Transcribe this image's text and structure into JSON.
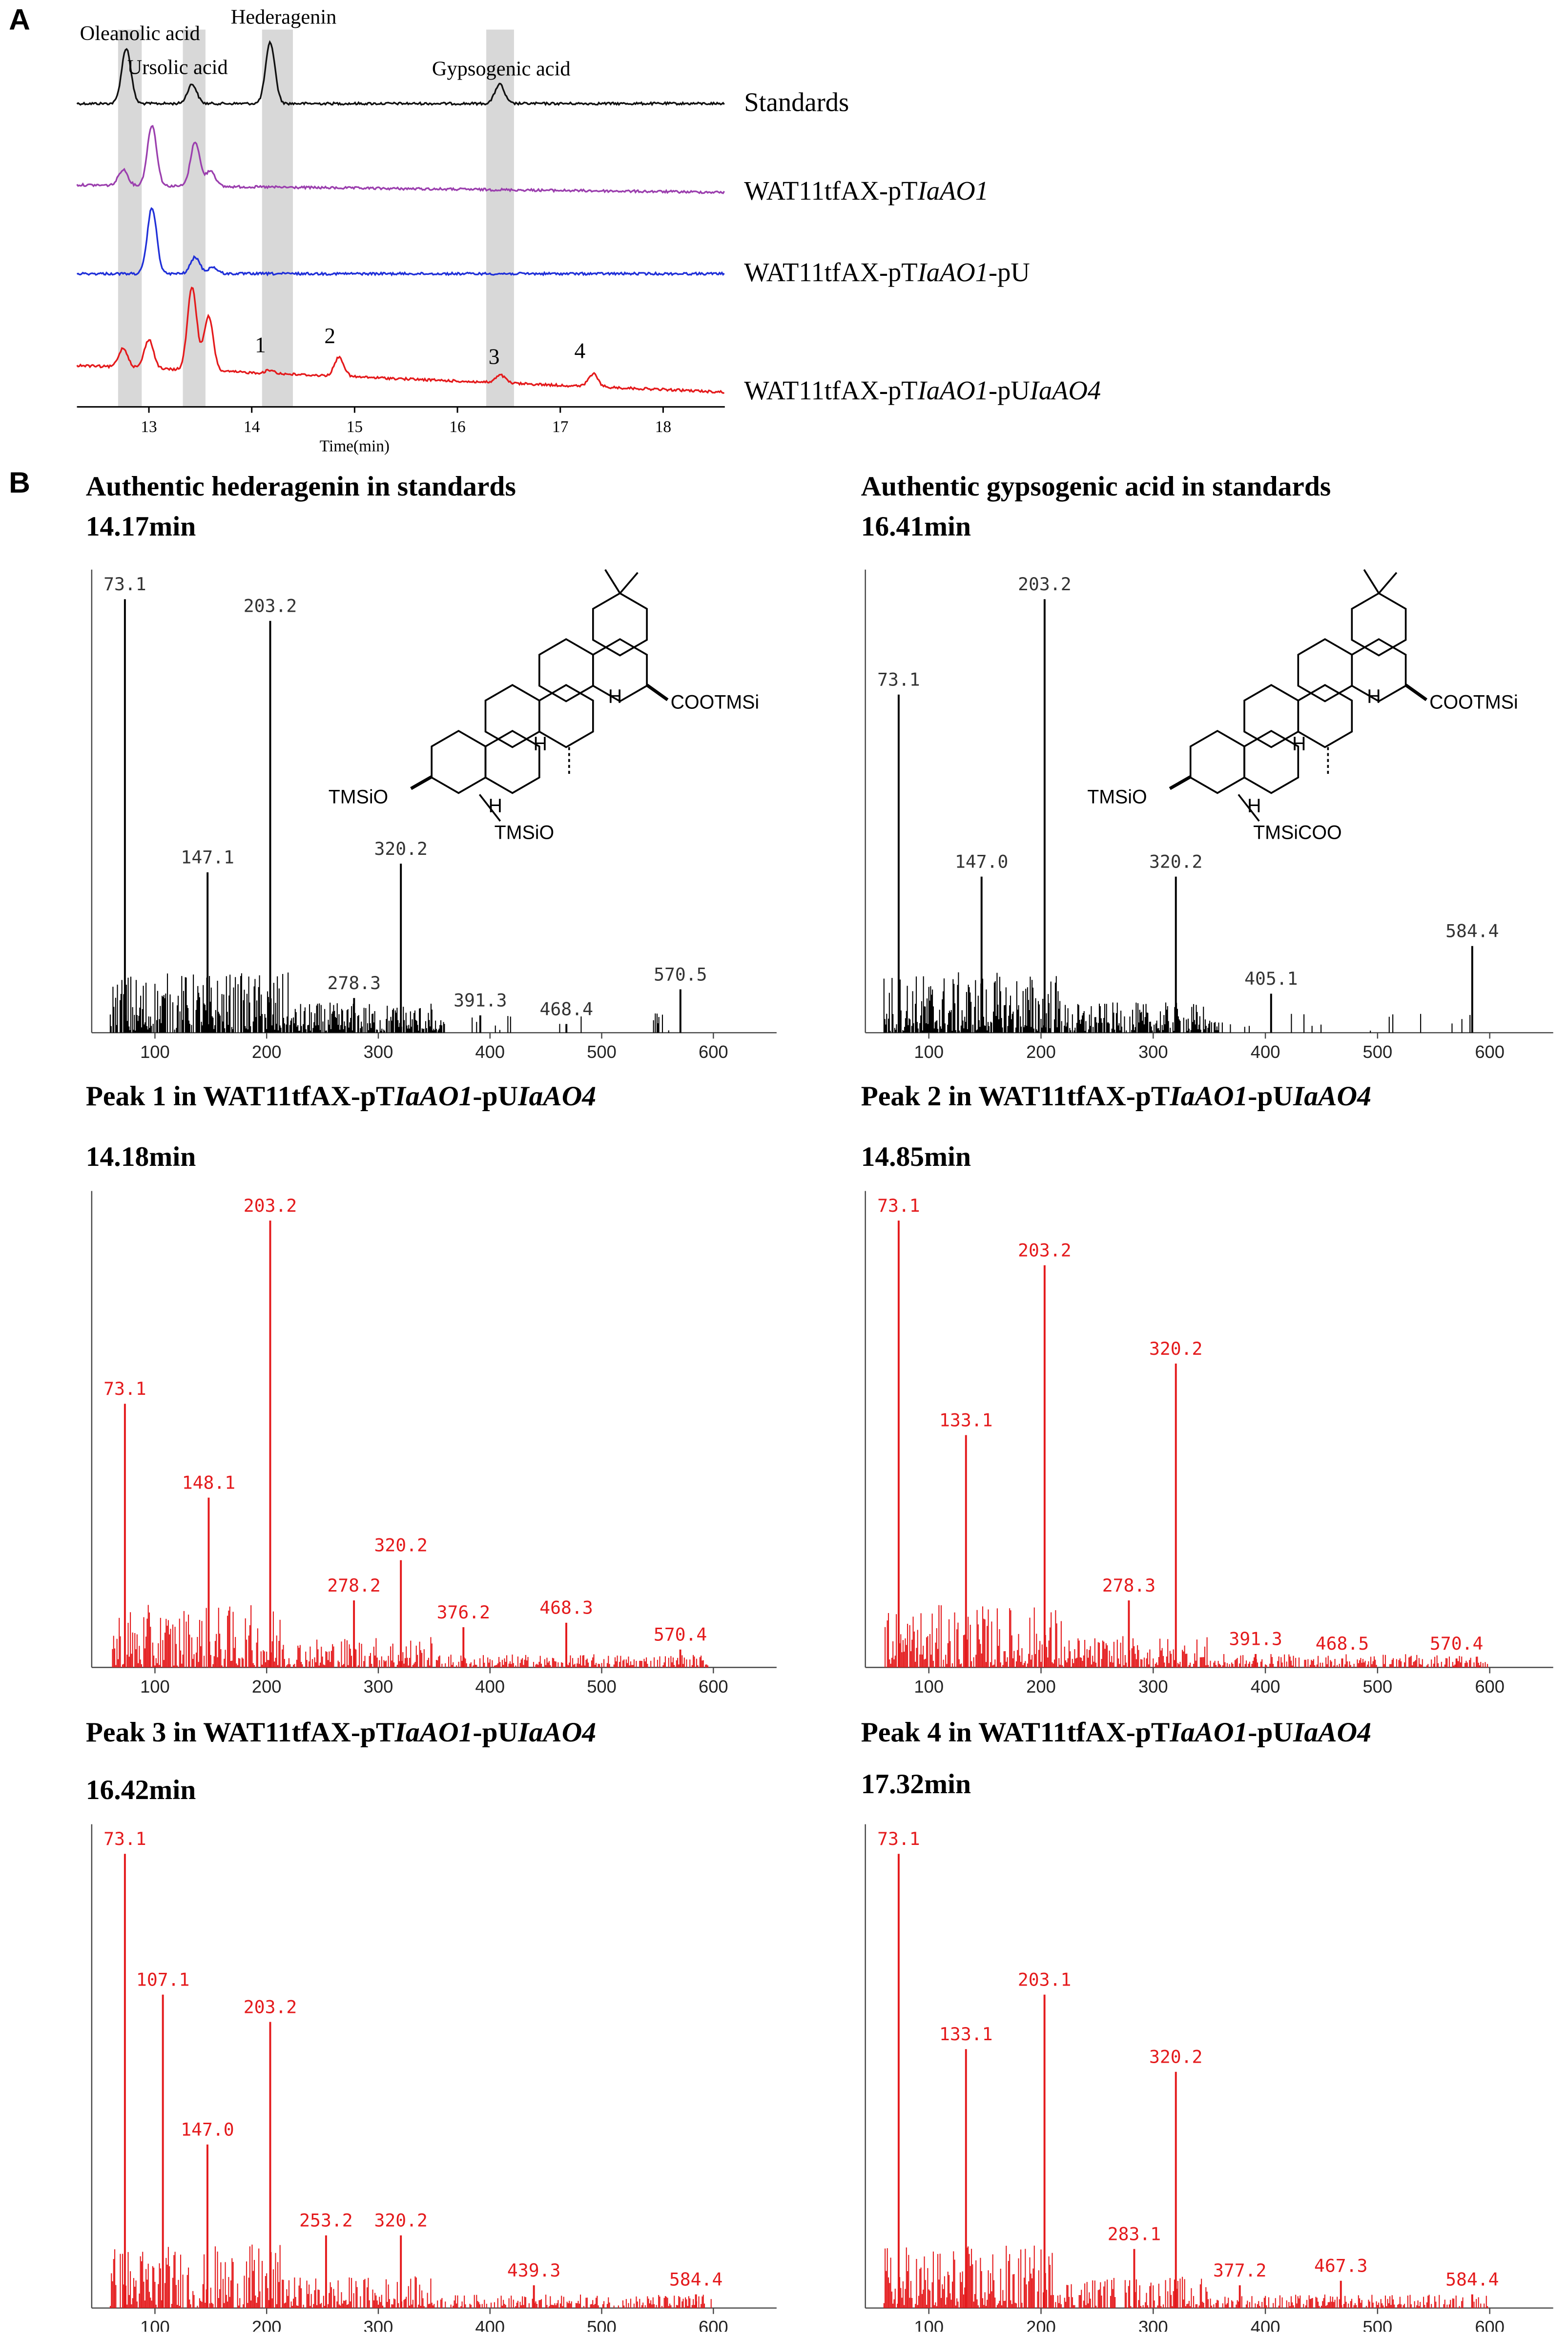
{
  "panel_labels": {
    "a": "A",
    "b": "B"
  },
  "colors": {
    "standards": "#111111",
    "io1": "#9b3fae",
    "io1_pu": "#2030d8",
    "io1_pu_ao4": "#e41a1c",
    "highlight": "#d8d8d8",
    "spectrum_black": "#000000",
    "spectrum_red": "#e41a1c"
  },
  "chromatogram": {
    "xlabel": "Time(min)",
    "xticks": [
      13,
      14,
      15,
      16,
      17,
      18
    ],
    "xlim": [
      12.3,
      18.6
    ],
    "highlight_bands": [
      [
        12.7,
        12.93
      ],
      [
        13.33,
        13.55
      ],
      [
        14.1,
        14.4
      ],
      [
        16.28,
        16.55
      ]
    ],
    "compounds": [
      {
        "label": "Oleanolic acid"
      },
      {
        "label": "Ursolic acid"
      },
      {
        "label": "Hederagenin"
      },
      {
        "label": "Gypsogenic acid"
      }
    ],
    "peak_numbers": [
      "1",
      "2",
      "3",
      "4"
    ],
    "traces": [
      {
        "label": "Standards",
        "label_parts": [
          {
            "t": "Standards",
            "i": false
          }
        ],
        "color": "#111111"
      },
      {
        "label": "WAT11tfAX-pTIaAO1",
        "label_parts": [
          {
            "t": "WAT11tfAX-pT",
            "i": false
          },
          {
            "t": "IaAO1",
            "i": true
          }
        ],
        "color": "#9b3fae"
      },
      {
        "label": "WAT11tfAX-pTIaAO1-pU",
        "label_parts": [
          {
            "t": "WAT11tfAX-pT",
            "i": false
          },
          {
            "t": "IaAO1",
            "i": true
          },
          {
            "t": "-pU",
            "i": false
          }
        ],
        "color": "#2030d8"
      },
      {
        "label": "WAT11tfAX-pTIaAO1-pUIaAO4",
        "label_parts": [
          {
            "t": "WAT11tfAX-pT",
            "i": false
          },
          {
            "t": "IaAO1",
            "i": true
          },
          {
            "t": "-pU",
            "i": false
          },
          {
            "t": "IaAO4",
            "i": true
          }
        ],
        "color": "#e41a1c"
      }
    ]
  },
  "spectra": [
    {
      "title_parts": [
        {
          "t": "Authentic hederagenin in standards",
          "i": false
        }
      ],
      "time": "14.17min",
      "color": "black",
      "structure": "hederagenin",
      "labels": [
        {
          "mz": 73.1,
          "text": "73.1"
        },
        {
          "mz": 203.2,
          "text": "203.2"
        },
        {
          "mz": 147.1,
          "text": "147.1"
        },
        {
          "mz": 320.2,
          "text": "320.2"
        },
        {
          "mz": 278.3,
          "text": "278.3"
        },
        {
          "mz": 391.3,
          "text": "391.3"
        },
        {
          "mz": 468.4,
          "text": "468.4"
        },
        {
          "mz": 570.5,
          "text": "570.5"
        }
      ]
    },
    {
      "title_parts": [
        {
          "t": "Authentic gypsogenic acid in standards",
          "i": false
        }
      ],
      "time": "16.41min",
      "color": "black",
      "structure": "gypsogenic",
      "labels": [
        {
          "mz": 73.1,
          "text": "73.1"
        },
        {
          "mz": 203.2,
          "text": "203.2"
        },
        {
          "mz": 147.0,
          "text": "147.0"
        },
        {
          "mz": 320.2,
          "text": "320.2"
        },
        {
          "mz": 405.1,
          "text": "405.1"
        },
        {
          "mz": 584.4,
          "text": "584.4"
        }
      ]
    },
    {
      "title_parts": [
        {
          "t": "Peak 1 in WAT11tfAX-pT",
          "i": false
        },
        {
          "t": "IaAO1",
          "i": true
        },
        {
          "t": "-pU",
          "i": false
        },
        {
          "t": "IaAO4",
          "i": true
        }
      ],
      "time": "14.18min",
      "color": "red",
      "labels": [
        {
          "mz": 203.2,
          "text": "203.2"
        },
        {
          "mz": 73.1,
          "text": "73.1"
        },
        {
          "mz": 148.1,
          "text": "148.1"
        },
        {
          "mz": 320.2,
          "text": "320.2"
        },
        {
          "mz": 278.2,
          "text": "278.2"
        },
        {
          "mz": 376.2,
          "text": "376.2"
        },
        {
          "mz": 468.3,
          "text": "468.3"
        },
        {
          "mz": 570.4,
          "text": "570.4"
        }
      ]
    },
    {
      "title_parts": [
        {
          "t": "Peak 2 in WAT11tfAX-pT",
          "i": false
        },
        {
          "t": "IaAO1",
          "i": true
        },
        {
          "t": "-pU",
          "i": false
        },
        {
          "t": "IaAO4",
          "i": true
        }
      ],
      "time": "14.85min",
      "color": "red",
      "labels": [
        {
          "mz": 73.1,
          "text": "73.1"
        },
        {
          "mz": 203.2,
          "text": "203.2"
        },
        {
          "mz": 320.2,
          "text": "320.2"
        },
        {
          "mz": 133.1,
          "text": "133.1"
        },
        {
          "mz": 278.3,
          "text": "278.3"
        },
        {
          "mz": 391.3,
          "text": "391.3"
        },
        {
          "mz": 468.5,
          "text": "468.5"
        },
        {
          "mz": 570.4,
          "text": "570.4"
        }
      ]
    },
    {
      "title_parts": [
        {
          "t": "Peak 3 in WAT11tfAX-pT",
          "i": false
        },
        {
          "t": "IaAO1",
          "i": true
        },
        {
          "t": "-pU",
          "i": false
        },
        {
          "t": "IaAO4",
          "i": true
        }
      ],
      "time": "16.42min",
      "color": "red",
      "labels": [
        {
          "mz": 73.1,
          "text": "73.1"
        },
        {
          "mz": 107.1,
          "text": "107.1"
        },
        {
          "mz": 203.2,
          "text": "203.2"
        },
        {
          "mz": 147.0,
          "text": "147.0"
        },
        {
          "mz": 253.2,
          "text": "253.2"
        },
        {
          "mz": 320.2,
          "text": "320.2"
        },
        {
          "mz": 439.3,
          "text": "439.3"
        },
        {
          "mz": 584.4,
          "text": "584.4"
        }
      ]
    },
    {
      "title_parts": [
        {
          "t": "Peak 4 in WAT11tfAX-pT",
          "i": false
        },
        {
          "t": "IaAO1",
          "i": true
        },
        {
          "t": "-pU",
          "i": false
        },
        {
          "t": "IaAO4",
          "i": true
        }
      ],
      "time": "17.32min",
      "color": "red",
      "labels": [
        {
          "mz": 73.1,
          "text": "73.1"
        },
        {
          "mz": 203.1,
          "text": "203.1"
        },
        {
          "mz": 133.1,
          "text": "133.1"
        },
        {
          "mz": 320.2,
          "text": "320.2"
        },
        {
          "mz": 283.1,
          "text": "283.1"
        },
        {
          "mz": 377.2,
          "text": "377.2"
        },
        {
          "mz": 467.3,
          "text": "467.3"
        },
        {
          "mz": 584.4,
          "text": "584.4"
        }
      ]
    }
  ],
  "spectrum_axis": {
    "ticks": [
      100,
      200,
      300,
      400,
      500,
      600
    ]
  },
  "structures": {
    "hederagenin": {
      "r1": "COOTMSi",
      "r2": "TMSiO",
      "r3": "TMSiO",
      "h1": "H",
      "h2": "H",
      "h3": "H"
    },
    "gypsogenic": {
      "r1": "COOTMSi",
      "r2": "TMSiO",
      "r3": "TMSiCOO",
      "h1": "H",
      "h2": "H",
      "h3": "H"
    }
  },
  "chart_data": [
    {
      "type": "line",
      "title": "",
      "xlabel": "Time(min)",
      "ylabel": "",
      "xlim": [
        12.3,
        18.6
      ],
      "series": [
        {
          "name": "Standards",
          "peaks": [
            {
              "x": 12.78,
              "y": 1.0
            },
            {
              "x": 13.42,
              "y": 0.35
            },
            {
              "x": 14.18,
              "y": 1.1
            },
            {
              "x": 16.41,
              "y": 0.35
            }
          ]
        },
        {
          "name": "WAT11tfAX-pTIaAO1",
          "peaks": [
            {
              "x": 12.75,
              "y": 0.25
            },
            {
              "x": 13.03,
              "y": 0.95
            },
            {
              "x": 13.45,
              "y": 0.7
            },
            {
              "x": 13.6,
              "y": 0.25
            }
          ]
        },
        {
          "name": "WAT11tfAX-pTIaAO1-pU",
          "peaks": [
            {
              "x": 13.03,
              "y": 1.0
            },
            {
              "x": 13.45,
              "y": 0.25
            },
            {
              "x": 13.62,
              "y": 0.1
            }
          ]
        },
        {
          "name": "WAT11tfAX-pTIaAO1-pUIaAO4",
          "peaks": [
            {
              "x": 12.75,
              "y": 0.3
            },
            {
              "x": 13.0,
              "y": 0.45
            },
            {
              "x": 13.42,
              "y": 1.3
            },
            {
              "x": 13.58,
              "y": 0.85
            },
            {
              "x": 14.18,
              "y": 0.05
            },
            {
              "x": 14.85,
              "y": 0.3
            },
            {
              "x": 16.42,
              "y": 0.12
            },
            {
              "x": 17.32,
              "y": 0.2
            }
          ]
        }
      ]
    },
    {
      "type": "bar",
      "title": "Authentic hederagenin in standards",
      "xlim": [
        50,
        650
      ],
      "peaks": [
        [
          73.1,
          1.0
        ],
        [
          203.2,
          0.95
        ],
        [
          147.1,
          0.37
        ],
        [
          320.2,
          0.39
        ],
        [
          278.3,
          0.08
        ],
        [
          391.3,
          0.04
        ],
        [
          468.4,
          0.02
        ],
        [
          570.5,
          0.1
        ]
      ]
    },
    {
      "type": "bar",
      "title": "Authentic gypsogenic acid in standards",
      "xlim": [
        50,
        650
      ],
      "peaks": [
        [
          73.1,
          0.78
        ],
        [
          203.2,
          1.0
        ],
        [
          147.0,
          0.36
        ],
        [
          320.2,
          0.36
        ],
        [
          405.1,
          0.09
        ],
        [
          584.4,
          0.2
        ]
      ]
    },
    {
      "type": "bar",
      "title": "Peak 1 in WAT11tfAX-pTIaAO1-pUIaAO4",
      "xlim": [
        50,
        650
      ],
      "peaks": [
        [
          203.2,
          1.0
        ],
        [
          73.1,
          0.59
        ],
        [
          148.1,
          0.38
        ],
        [
          320.2,
          0.24
        ],
        [
          278.2,
          0.15
        ],
        [
          376.2,
          0.09
        ],
        [
          468.3,
          0.1
        ],
        [
          570.4,
          0.04
        ]
      ]
    },
    {
      "type": "bar",
      "title": "Peak 2 in WAT11tfAX-pTIaAO1-pUIaAO4",
      "xlim": [
        50,
        650
      ],
      "peaks": [
        [
          73.1,
          1.0
        ],
        [
          203.2,
          0.9
        ],
        [
          320.2,
          0.68
        ],
        [
          133.1,
          0.52
        ],
        [
          278.3,
          0.15
        ],
        [
          391.3,
          0.03
        ],
        [
          468.5,
          0.02
        ],
        [
          570.4,
          0.02
        ]
      ]
    },
    {
      "type": "bar",
      "title": "Peak 3 in WAT11tfAX-pTIaAO1-pUIaAO4",
      "xlim": [
        50,
        650
      ],
      "peaks": [
        [
          73.1,
          1.0
        ],
        [
          107.1,
          0.69
        ],
        [
          203.2,
          0.63
        ],
        [
          147.0,
          0.36
        ],
        [
          253.2,
          0.16
        ],
        [
          320.2,
          0.16
        ],
        [
          439.3,
          0.05
        ],
        [
          584.4,
          0.03
        ]
      ]
    },
    {
      "type": "bar",
      "title": "Peak 4 in WAT11tfAX-pTIaAO1-pUIaAO4",
      "xlim": [
        50,
        650
      ],
      "peaks": [
        [
          73.1,
          1.0
        ],
        [
          203.1,
          0.69
        ],
        [
          133.1,
          0.57
        ],
        [
          320.2,
          0.52
        ],
        [
          283.1,
          0.13
        ],
        [
          377.2,
          0.05
        ],
        [
          467.3,
          0.06
        ],
        [
          584.4,
          0.03
        ]
      ]
    }
  ]
}
